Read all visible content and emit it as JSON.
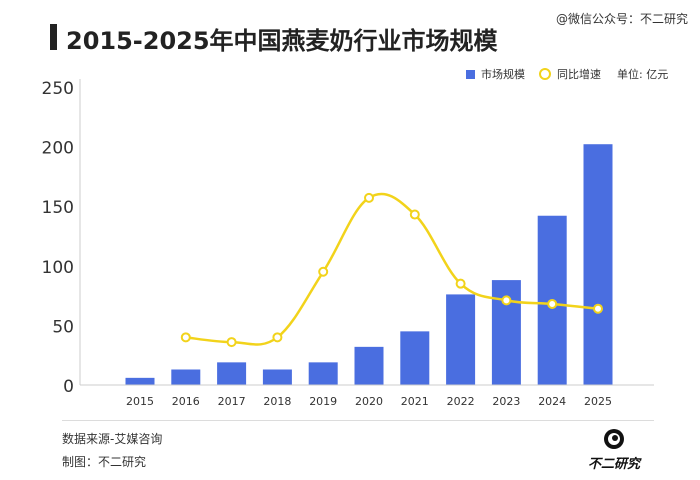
{
  "header": {
    "title": "2015-2025年中国燕麦奶行业市场规模",
    "wechat": "@微信公众号：不二研究"
  },
  "legend": {
    "bar_label": "市场规模",
    "line_label": "同比增速",
    "unit": "单位: 亿元"
  },
  "footer": {
    "source": "数据来源-艾媒咨询",
    "credit": "制图：不二研究",
    "brand": "不二研究"
  },
  "colors": {
    "bar": "#4a6ee0",
    "line": "#f2d31b",
    "axis": "#cccccc",
    "tick": "#333333"
  },
  "chart_data": {
    "type": "bar",
    "title": "2015-2025年中国燕麦奶行业市场规模",
    "categories": [
      "2015",
      "2016",
      "2017",
      "2018",
      "2019",
      "2020",
      "2021",
      "2022",
      "2023",
      "2024",
      "2025"
    ],
    "ylim": [
      0,
      250
    ],
    "yticks": [
      0,
      50,
      100,
      150,
      200,
      250
    ],
    "grid": false,
    "legend_position": "top-right",
    "series": [
      {
        "name": "市场规模",
        "type": "bar",
        "values": [
          6,
          13,
          19,
          13,
          19,
          32,
          45,
          76,
          88,
          142,
          202
        ]
      },
      {
        "name": "同比增速",
        "type": "line",
        "values": [
          null,
          40,
          36,
          40,
          95,
          157,
          143,
          85,
          71,
          68,
          64
        ]
      }
    ]
  }
}
